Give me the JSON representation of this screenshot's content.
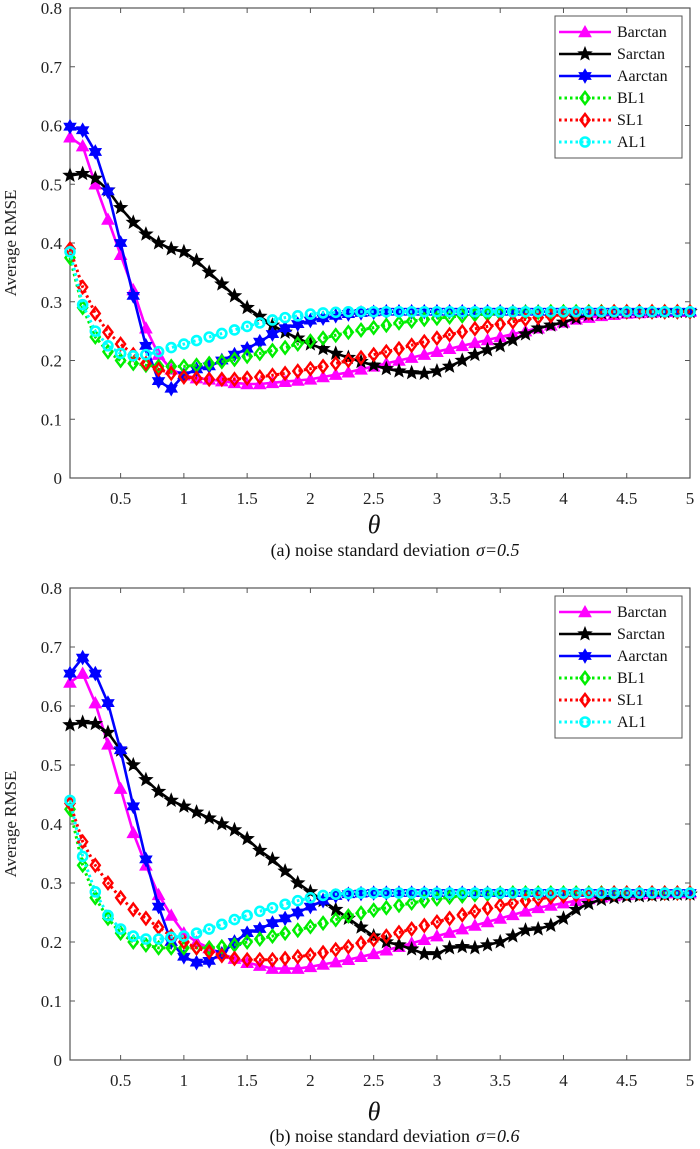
{
  "chart_data": [
    {
      "type": "line",
      "title": "",
      "caption": "(a) noise standard deviation",
      "caption_symbol": "σ=0.5",
      "xlabel": "θ",
      "ylabel": "Average  RMSE",
      "xlim": [
        0.1,
        5
      ],
      "ylim": [
        0,
        0.8
      ],
      "xticks": [
        "0.5",
        "1",
        "1.5",
        "2",
        "2.5",
        "3",
        "3.5",
        "4",
        "4.5",
        "5"
      ],
      "xtick_values": [
        0.5,
        1,
        1.5,
        2,
        2.5,
        3,
        3.5,
        4,
        4.5,
        5
      ],
      "yticks": [
        "0",
        "0.1",
        "0.2",
        "0.3",
        "0.4",
        "0.5",
        "0.6",
        "0.7",
        "0.8"
      ],
      "ytick_values": [
        0,
        0.1,
        0.2,
        0.3,
        0.4,
        0.5,
        0.6,
        0.7,
        0.8
      ],
      "grid": false,
      "legend_position": "top-right",
      "x": [
        0.1,
        0.2,
        0.3,
        0.4,
        0.5,
        0.6,
        0.7,
        0.8,
        0.9,
        1.0,
        1.1,
        1.2,
        1.3,
        1.4,
        1.5,
        1.6,
        1.7,
        1.8,
        1.9,
        2.0,
        2.1,
        2.2,
        2.3,
        2.4,
        2.5,
        2.6,
        2.7,
        2.8,
        2.9,
        3.0,
        3.1,
        3.2,
        3.3,
        3.4,
        3.5,
        3.6,
        3.7,
        3.8,
        3.9,
        4.0,
        4.1,
        4.2,
        4.3,
        4.4,
        4.5,
        4.6,
        4.7,
        4.8,
        4.9,
        5.0
      ],
      "series": [
        {
          "name": "Barctan",
          "color": "#ff00ff",
          "marker": "triangle",
          "dash": "solid",
          "values": [
            0.58,
            0.565,
            0.5,
            0.44,
            0.38,
            0.32,
            0.255,
            0.21,
            0.185,
            0.175,
            0.17,
            0.168,
            0.165,
            0.162,
            0.16,
            0.16,
            0.162,
            0.164,
            0.166,
            0.168,
            0.172,
            0.176,
            0.18,
            0.185,
            0.19,
            0.195,
            0.2,
            0.205,
            0.21,
            0.215,
            0.22,
            0.225,
            0.23,
            0.235,
            0.24,
            0.245,
            0.25,
            0.255,
            0.26,
            0.265,
            0.27,
            0.273,
            0.276,
            0.278,
            0.28,
            0.281,
            0.282,
            0.283,
            0.283,
            0.283
          ]
        },
        {
          "name": "Sarctan",
          "color": "#000000",
          "marker": "star",
          "dash": "solid",
          "values": [
            0.515,
            0.518,
            0.51,
            0.49,
            0.46,
            0.435,
            0.415,
            0.4,
            0.39,
            0.385,
            0.37,
            0.35,
            0.33,
            0.31,
            0.29,
            0.275,
            0.26,
            0.248,
            0.238,
            0.228,
            0.22,
            0.212,
            0.205,
            0.198,
            0.192,
            0.186,
            0.182,
            0.179,
            0.178,
            0.182,
            0.19,
            0.2,
            0.21,
            0.218,
            0.225,
            0.235,
            0.245,
            0.255,
            0.26,
            0.265,
            0.272,
            0.278,
            0.281,
            0.282,
            0.283,
            0.283,
            0.283,
            0.283,
            0.283,
            0.283
          ]
        },
        {
          "name": "Aarctan",
          "color": "#0000ff",
          "marker": "hexagram",
          "dash": "solid",
          "values": [
            0.598,
            0.592,
            0.555,
            0.488,
            0.4,
            0.31,
            0.225,
            0.165,
            0.152,
            0.175,
            0.185,
            0.19,
            0.2,
            0.21,
            0.22,
            0.232,
            0.245,
            0.255,
            0.262,
            0.268,
            0.272,
            0.276,
            0.279,
            0.281,
            0.282,
            0.283,
            0.283,
            0.283,
            0.283,
            0.283,
            0.283,
            0.283,
            0.283,
            0.283,
            0.283,
            0.283,
            0.283,
            0.283,
            0.283,
            0.283,
            0.283,
            0.283,
            0.283,
            0.283,
            0.283,
            0.283,
            0.283,
            0.283,
            0.283,
            0.283
          ]
        },
        {
          "name": "BL1",
          "color": "#00ee00",
          "marker": "diamond",
          "dash": "dotted",
          "values": [
            0.375,
            0.29,
            0.24,
            0.215,
            0.2,
            0.195,
            0.192,
            0.19,
            0.19,
            0.19,
            0.192,
            0.195,
            0.198,
            0.202,
            0.207,
            0.212,
            0.217,
            0.222,
            0.228,
            0.233,
            0.238,
            0.243,
            0.248,
            0.252,
            0.256,
            0.26,
            0.264,
            0.267,
            0.27,
            0.272,
            0.274,
            0.276,
            0.278,
            0.279,
            0.28,
            0.281,
            0.282,
            0.282,
            0.283,
            0.283,
            0.283,
            0.283,
            0.283,
            0.283,
            0.283,
            0.283,
            0.283,
            0.283,
            0.283,
            0.283
          ]
        },
        {
          "name": "SL1",
          "color": "#ff0000",
          "marker": "diamond",
          "dash": "dotted",
          "values": [
            0.39,
            0.325,
            0.28,
            0.248,
            0.228,
            0.21,
            0.195,
            0.185,
            0.178,
            0.172,
            0.17,
            0.168,
            0.168,
            0.168,
            0.17,
            0.172,
            0.175,
            0.178,
            0.182,
            0.186,
            0.19,
            0.195,
            0.2,
            0.205,
            0.21,
            0.215,
            0.22,
            0.226,
            0.232,
            0.238,
            0.244,
            0.249,
            0.254,
            0.258,
            0.262,
            0.266,
            0.27,
            0.273,
            0.276,
            0.278,
            0.28,
            0.281,
            0.282,
            0.283,
            0.283,
            0.283,
            0.283,
            0.283,
            0.283,
            0.283
          ]
        },
        {
          "name": "AL1",
          "color": "#00ffff",
          "marker": "circle",
          "dash": "dotted",
          "values": [
            0.385,
            0.295,
            0.25,
            0.225,
            0.212,
            0.208,
            0.21,
            0.215,
            0.222,
            0.228,
            0.234,
            0.24,
            0.246,
            0.252,
            0.258,
            0.264,
            0.269,
            0.273,
            0.276,
            0.279,
            0.281,
            0.282,
            0.283,
            0.283,
            0.283,
            0.283,
            0.283,
            0.283,
            0.283,
            0.283,
            0.283,
            0.283,
            0.283,
            0.283,
            0.283,
            0.283,
            0.283,
            0.283,
            0.283,
            0.283,
            0.283,
            0.283,
            0.283,
            0.283,
            0.283,
            0.283,
            0.283,
            0.283,
            0.283,
            0.283
          ]
        }
      ]
    },
    {
      "type": "line",
      "title": "",
      "caption": "(b) noise standard deviation",
      "caption_symbol": "σ=0.6",
      "xlabel": "θ",
      "ylabel": "Average  RMSE",
      "xlim": [
        0.1,
        5
      ],
      "ylim": [
        0,
        0.8
      ],
      "xticks": [
        "0.5",
        "1",
        "1.5",
        "2",
        "2.5",
        "3",
        "3.5",
        "4",
        "4.5",
        "5"
      ],
      "xtick_values": [
        0.5,
        1,
        1.5,
        2,
        2.5,
        3,
        3.5,
        4,
        4.5,
        5
      ],
      "yticks": [
        "0",
        "0.1",
        "0.2",
        "0.3",
        "0.4",
        "0.5",
        "0.6",
        "0.7",
        "0.8"
      ],
      "ytick_values": [
        0,
        0.1,
        0.2,
        0.3,
        0.4,
        0.5,
        0.6,
        0.7,
        0.8
      ],
      "grid": false,
      "legend_position": "top-right",
      "x": [
        0.1,
        0.2,
        0.3,
        0.4,
        0.5,
        0.6,
        0.7,
        0.8,
        0.9,
        1.0,
        1.1,
        1.2,
        1.3,
        1.4,
        1.5,
        1.6,
        1.7,
        1.8,
        1.9,
        2.0,
        2.1,
        2.2,
        2.3,
        2.4,
        2.5,
        2.6,
        2.7,
        2.8,
        2.9,
        3.0,
        3.1,
        3.2,
        3.3,
        3.4,
        3.5,
        3.6,
        3.7,
        3.8,
        3.9,
        4.0,
        4.1,
        4.2,
        4.3,
        4.4,
        4.5,
        4.6,
        4.7,
        4.8,
        4.9,
        5.0
      ],
      "series": [
        {
          "name": "Barctan",
          "color": "#ff00ff",
          "marker": "triangle",
          "dash": "solid",
          "values": [
            0.64,
            0.655,
            0.605,
            0.535,
            0.46,
            0.385,
            0.33,
            0.28,
            0.245,
            0.215,
            0.2,
            0.19,
            0.18,
            0.172,
            0.165,
            0.16,
            0.155,
            0.155,
            0.155,
            0.158,
            0.162,
            0.166,
            0.17,
            0.175,
            0.18,
            0.186,
            0.192,
            0.198,
            0.204,
            0.21,
            0.216,
            0.222,
            0.228,
            0.234,
            0.24,
            0.246,
            0.252,
            0.258,
            0.262,
            0.266,
            0.27,
            0.273,
            0.276,
            0.278,
            0.28,
            0.281,
            0.282,
            0.283,
            0.283,
            0.283
          ]
        },
        {
          "name": "Sarctan",
          "color": "#000000",
          "marker": "star",
          "dash": "solid",
          "values": [
            0.568,
            0.572,
            0.57,
            0.555,
            0.525,
            0.5,
            0.475,
            0.455,
            0.44,
            0.43,
            0.42,
            0.41,
            0.4,
            0.39,
            0.375,
            0.355,
            0.34,
            0.32,
            0.3,
            0.285,
            0.27,
            0.255,
            0.24,
            0.225,
            0.21,
            0.2,
            0.195,
            0.188,
            0.18,
            0.18,
            0.19,
            0.192,
            0.19,
            0.195,
            0.2,
            0.21,
            0.22,
            0.222,
            0.228,
            0.24,
            0.255,
            0.265,
            0.272,
            0.275,
            0.277,
            0.278,
            0.279,
            0.28,
            0.281,
            0.281
          ]
        },
        {
          "name": "Aarctan",
          "color": "#0000ff",
          "marker": "hexagram",
          "dash": "solid",
          "values": [
            0.655,
            0.682,
            0.655,
            0.605,
            0.525,
            0.43,
            0.34,
            0.26,
            0.2,
            0.175,
            0.165,
            0.168,
            0.18,
            0.2,
            0.215,
            0.222,
            0.232,
            0.24,
            0.25,
            0.26,
            0.27,
            0.278,
            0.281,
            0.282,
            0.283,
            0.283,
            0.283,
            0.283,
            0.283,
            0.283,
            0.283,
            0.283,
            0.283,
            0.283,
            0.283,
            0.283,
            0.283,
            0.283,
            0.283,
            0.283,
            0.283,
            0.283,
            0.283,
            0.283,
            0.283,
            0.283,
            0.283,
            0.283,
            0.283,
            0.283
          ]
        },
        {
          "name": "BL1",
          "color": "#00ee00",
          "marker": "diamond",
          "dash": "dotted",
          "values": [
            0.425,
            0.33,
            0.275,
            0.24,
            0.215,
            0.2,
            0.195,
            0.19,
            0.19,
            0.19,
            0.19,
            0.19,
            0.192,
            0.195,
            0.2,
            0.205,
            0.21,
            0.215,
            0.22,
            0.226,
            0.232,
            0.238,
            0.244,
            0.249,
            0.254,
            0.258,
            0.262,
            0.266,
            0.27,
            0.273,
            0.276,
            0.278,
            0.28,
            0.281,
            0.282,
            0.283,
            0.283,
            0.283,
            0.283,
            0.283,
            0.283,
            0.283,
            0.283,
            0.283,
            0.283,
            0.283,
            0.283,
            0.283,
            0.283,
            0.283
          ]
        },
        {
          "name": "SL1",
          "color": "#ff0000",
          "marker": "diamond",
          "dash": "dotted",
          "values": [
            0.435,
            0.37,
            0.33,
            0.3,
            0.275,
            0.255,
            0.24,
            0.225,
            0.21,
            0.2,
            0.19,
            0.183,
            0.177,
            0.172,
            0.17,
            0.17,
            0.17,
            0.172,
            0.175,
            0.178,
            0.182,
            0.187,
            0.192,
            0.198,
            0.204,
            0.21,
            0.216,
            0.222,
            0.228,
            0.234,
            0.24,
            0.246,
            0.252,
            0.257,
            0.262,
            0.266,
            0.27,
            0.273,
            0.276,
            0.278,
            0.28,
            0.281,
            0.282,
            0.283,
            0.283,
            0.283,
            0.283,
            0.283,
            0.283,
            0.283
          ]
        },
        {
          "name": "AL1",
          "color": "#00ffff",
          "marker": "circle",
          "dash": "dotted",
          "values": [
            0.44,
            0.345,
            0.285,
            0.245,
            0.222,
            0.21,
            0.205,
            0.205,
            0.208,
            0.21,
            0.215,
            0.222,
            0.23,
            0.238,
            0.245,
            0.252,
            0.258,
            0.264,
            0.27,
            0.275,
            0.279,
            0.281,
            0.282,
            0.283,
            0.283,
            0.283,
            0.283,
            0.283,
            0.283,
            0.283,
            0.283,
            0.283,
            0.283,
            0.283,
            0.283,
            0.283,
            0.283,
            0.283,
            0.283,
            0.283,
            0.283,
            0.283,
            0.283,
            0.283,
            0.283,
            0.283,
            0.283,
            0.283,
            0.283,
            0.283
          ]
        }
      ]
    }
  ]
}
